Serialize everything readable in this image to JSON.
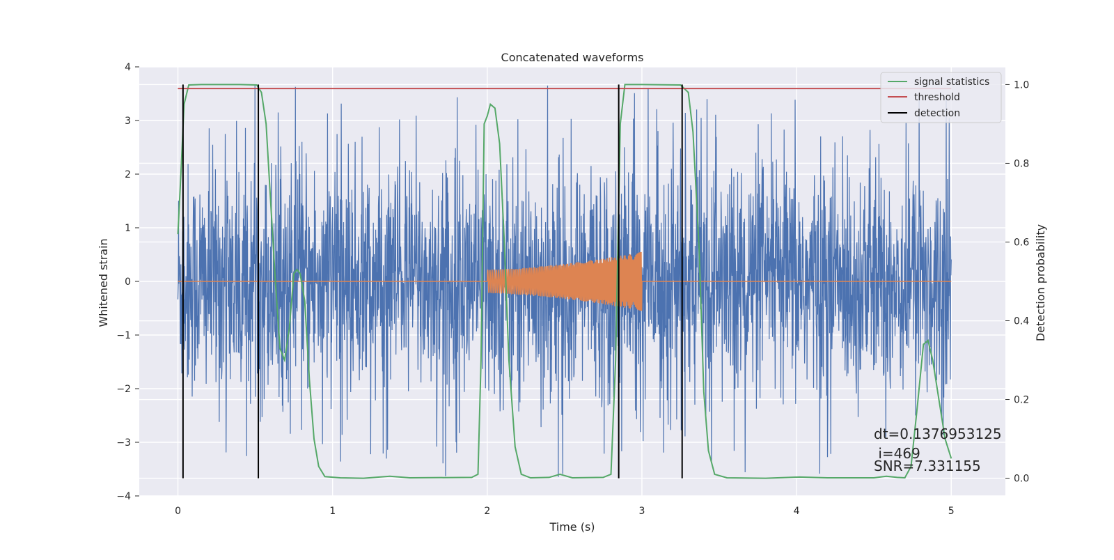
{
  "chart_data": {
    "type": "line",
    "title": "Concatenated waveforms",
    "xlabel": "Time (s)",
    "ylabel": "Whitened strain",
    "ylabel_right": "Detection probability",
    "xlim": [
      -0.25,
      5.35
    ],
    "ylim": [
      -4,
      4
    ],
    "ylim_right": [
      -0.045,
      1.045
    ],
    "x_ticks": [
      0,
      1,
      2,
      3,
      4,
      5
    ],
    "y_ticks": [
      -4,
      -3,
      -2,
      -1,
      0,
      1,
      2,
      3,
      4
    ],
    "y_ticks_right": [
      0.0,
      0.2,
      0.4,
      0.6,
      0.8,
      1.0
    ],
    "y_tick_labels": [
      "−4",
      "−3",
      "−2",
      "−1",
      "0",
      "1",
      "2",
      "3",
      "4"
    ],
    "y_tick_labels_right": [
      "0.0",
      "0.2",
      "0.4",
      "0.6",
      "0.8",
      "1.0"
    ],
    "x_tick_labels": [
      "0",
      "1",
      "2",
      "3",
      "4",
      "5"
    ],
    "grid": true,
    "legend_position": "top-right",
    "series": [
      {
        "name": "signal statistics",
        "axis": "right",
        "color": "#55a868",
        "points": [
          [
            0,
            0.62
          ],
          [
            0.02,
            0.78
          ],
          [
            0.04,
            0.95
          ],
          [
            0.07,
            0.999
          ],
          [
            0.15,
            1.0
          ],
          [
            0.4,
            1.0
          ],
          [
            0.51,
            0.999
          ],
          [
            0.54,
            0.98
          ],
          [
            0.57,
            0.9
          ],
          [
            0.6,
            0.7
          ],
          [
            0.63,
            0.5
          ],
          [
            0.66,
            0.33
          ],
          [
            0.69,
            0.3
          ],
          [
            0.72,
            0.38
          ],
          [
            0.75,
            0.52
          ],
          [
            0.77,
            0.53
          ],
          [
            0.79,
            0.52
          ],
          [
            0.82,
            0.45
          ],
          [
            0.85,
            0.25
          ],
          [
            0.88,
            0.1
          ],
          [
            0.91,
            0.03
          ],
          [
            0.95,
            0.004
          ],
          [
            1.05,
            0.001
          ],
          [
            1.2,
            0.0
          ],
          [
            1.37,
            0.005
          ],
          [
            1.5,
            0.001
          ],
          [
            1.9,
            0.002
          ],
          [
            1.94,
            0.01
          ],
          [
            1.96,
            0.3
          ],
          [
            1.98,
            0.9
          ],
          [
            2.0,
            0.92
          ],
          [
            2.02,
            0.95
          ],
          [
            2.05,
            0.94
          ],
          [
            2.08,
            0.85
          ],
          [
            2.11,
            0.6
          ],
          [
            2.14,
            0.3
          ],
          [
            2.18,
            0.08
          ],
          [
            2.22,
            0.01
          ],
          [
            2.28,
            0.001
          ],
          [
            2.4,
            0.002
          ],
          [
            2.47,
            0.01
          ],
          [
            2.55,
            0.001
          ],
          [
            2.75,
            0.002
          ],
          [
            2.8,
            0.01
          ],
          [
            2.83,
            0.3
          ],
          [
            2.86,
            0.9
          ],
          [
            2.89,
            1.0
          ],
          [
            3.0,
            1.0
          ],
          [
            3.25,
            0.999
          ],
          [
            3.3,
            0.98
          ],
          [
            3.33,
            0.88
          ],
          [
            3.37,
            0.58
          ],
          [
            3.4,
            0.22
          ],
          [
            3.43,
            0.07
          ],
          [
            3.47,
            0.01
          ],
          [
            3.55,
            0.001
          ],
          [
            3.8,
            0.0
          ],
          [
            4.02,
            0.003
          ],
          [
            4.2,
            0.001
          ],
          [
            4.5,
            0.001
          ],
          [
            4.58,
            0.005
          ],
          [
            4.65,
            0.002
          ],
          [
            4.7,
            0.001
          ],
          [
            4.74,
            0.03
          ],
          [
            4.78,
            0.18
          ],
          [
            4.82,
            0.34
          ],
          [
            4.85,
            0.35
          ],
          [
            4.88,
            0.3
          ],
          [
            4.92,
            0.2
          ],
          [
            4.96,
            0.1
          ],
          [
            5.0,
            0.05
          ]
        ]
      },
      {
        "name": "threshold",
        "axis": "right",
        "color": "#c44e52",
        "points": [
          [
            0,
            0.99
          ],
          [
            5,
            0.99
          ]
        ]
      },
      {
        "name": "detection",
        "axis": "right",
        "color": "#000000",
        "x": [
          0.033,
          0.52,
          2.85,
          3.26
        ],
        "y_range": [
          0.0,
          1.0
        ]
      }
    ],
    "strain": {
      "color": "#4c72b0",
      "x_range": [
        0,
        5
      ],
      "typical_amplitude": 1.8,
      "max_amplitude": 3.65
    },
    "waveform": {
      "color": "#dd8452",
      "x_range": [
        2.0,
        3.0
      ],
      "amplitude_start": 0.22,
      "amplitude_end": 0.55
    },
    "annotations": [
      "dt=0.1376953125",
      " i=469",
      "SNR=7.331155"
    ]
  }
}
